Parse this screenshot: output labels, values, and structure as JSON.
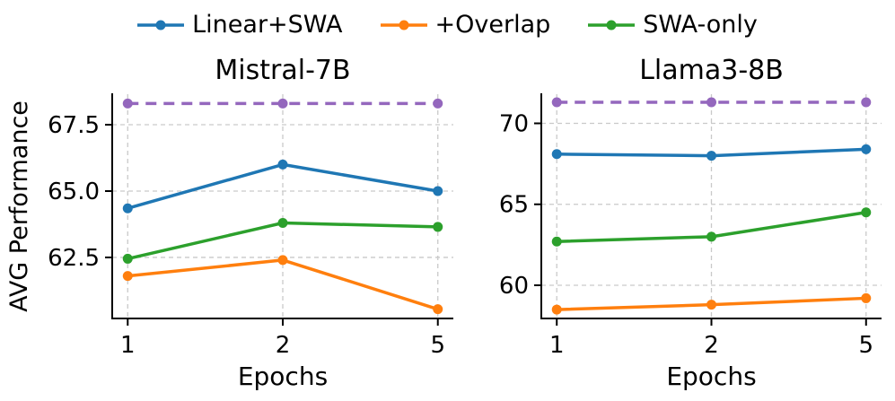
{
  "figure": {
    "background": "#ffffff",
    "text_color": "#000000"
  },
  "legend": {
    "position": "top-center",
    "frame": false,
    "items": [
      {
        "label": "Linear+SWA",
        "color": "#1f77b4"
      },
      {
        "label": "+Overlap",
        "color": "#ff7f0e"
      },
      {
        "label": "SWA-only",
        "color": "#2ca02c"
      }
    ]
  },
  "chart_data": [
    {
      "type": "line",
      "title": "Mistral-7B",
      "xlabel": "Epochs",
      "ylabel": "AVG Performance",
      "x_categories": [
        "1",
        "2",
        "5"
      ],
      "yticks": [
        62.5,
        65.0,
        67.5
      ],
      "ytick_labels": [
        "62.5",
        "65.0",
        "67.5"
      ],
      "ylim": [
        60.2,
        68.65
      ],
      "grid": true,
      "grid_color": "#c9c9c9",
      "reference_line": {
        "name": "upper-bound",
        "value": 68.3,
        "color": "#9467bd",
        "style": "dashed"
      },
      "series": [
        {
          "name": "Linear+SWA",
          "color": "#1f77b4",
          "values": [
            64.35,
            66.0,
            65.0
          ]
        },
        {
          "name": "+Overlap",
          "color": "#ff7f0e",
          "values": [
            61.8,
            62.4,
            60.55
          ]
        },
        {
          "name": "SWA-only",
          "color": "#2ca02c",
          "values": [
            62.45,
            63.8,
            63.65
          ]
        }
      ]
    },
    {
      "type": "line",
      "title": "Llama3-8B",
      "xlabel": "Epochs",
      "ylabel": null,
      "x_categories": [
        "1",
        "2",
        "5"
      ],
      "yticks": [
        60,
        65,
        70
      ],
      "ytick_labels": [
        "60",
        "65",
        "70"
      ],
      "ylim": [
        57.95,
        71.8
      ],
      "grid": true,
      "grid_color": "#c9c9c9",
      "reference_line": {
        "name": "upper-bound",
        "value": 71.3,
        "color": "#9467bd",
        "style": "dashed"
      },
      "series": [
        {
          "name": "Linear+SWA",
          "color": "#1f77b4",
          "values": [
            68.1,
            68.0,
            68.4
          ]
        },
        {
          "name": "+Overlap",
          "color": "#ff7f0e",
          "values": [
            58.5,
            58.8,
            59.2
          ]
        },
        {
          "name": "SWA-only",
          "color": "#2ca02c",
          "values": [
            62.7,
            63.0,
            64.5
          ]
        }
      ]
    }
  ]
}
